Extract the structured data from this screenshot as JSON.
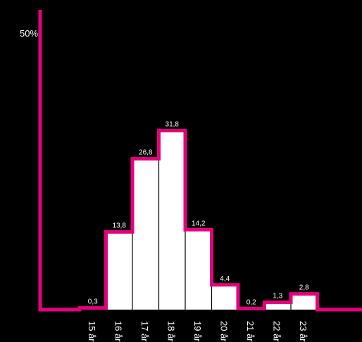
{
  "chart_data": {
    "type": "bar",
    "ylim": [
      0,
      50
    ],
    "y_axis_label": "50%",
    "categories": [
      "15 år",
      "16 år",
      "17 år",
      "18 år",
      "19 år",
      "20 år",
      "21 år",
      "22 år",
      "23 år"
    ],
    "values": [
      0.3,
      13.8,
      26.8,
      31.8,
      14.2,
      4.4,
      0.2,
      1.3,
      2.8
    ],
    "value_labels": [
      "0,3",
      "13,8",
      "26,8",
      "31,8",
      "14,2",
      "4,4",
      "0,2",
      "1,3",
      "2,8"
    ],
    "grid": false,
    "legend": "none",
    "colors": {
      "background": "#000000",
      "bar_fill": "#ffffff",
      "outline": "#e6007e",
      "text": "#ffffff"
    }
  }
}
